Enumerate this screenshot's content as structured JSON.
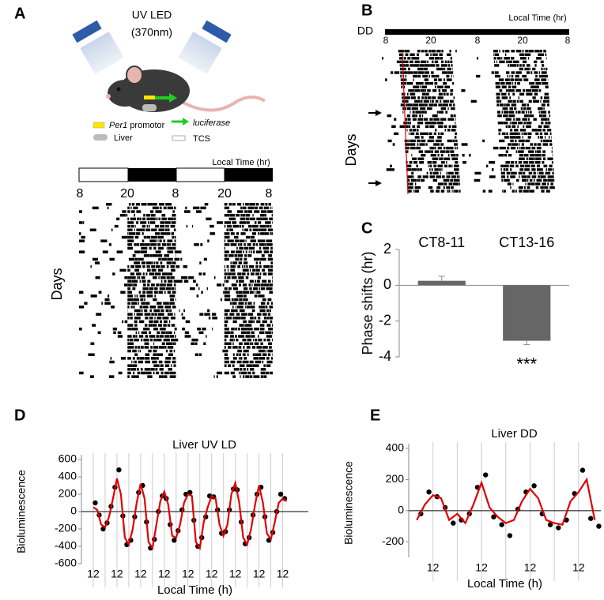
{
  "panel_labels": [
    "A",
    "B",
    "C",
    "D",
    "E"
  ],
  "panel_a": {
    "led_label": "UV LED",
    "wavelength": "(370nm)",
    "per1": "Per1",
    "promotor": "promotor",
    "luciferase": "luciferase",
    "liver": "Liver",
    "tcs": "TCS",
    "actogram": {
      "axis_title": "Local Time (hr)",
      "hour_labels": [
        "8",
        "20",
        "8",
        "20",
        "8"
      ],
      "y_label": "Days"
    }
  },
  "panel_b": {
    "condition": "DD",
    "actogram": {
      "axis_title": "Local Time (hr)",
      "hour_labels": [
        "8",
        "20",
        "8",
        "20",
        "8"
      ],
      "y_label": "Days"
    }
  },
  "chart_data": [
    {
      "type": "bar",
      "categories": [
        "CT8-11",
        "CT13-16"
      ],
      "values": [
        0.25,
        -3.1
      ],
      "errors": [
        0.25,
        0.22
      ],
      "color": "#666666",
      "ylabel": "Phase shifts (hr)",
      "ylim": [
        -4,
        2
      ],
      "yticks": [
        -4,
        -2,
        0,
        2
      ],
      "annotation": "***"
    },
    {
      "type": "scatter",
      "title": "Liver UV LD",
      "xlabel": "Local Time (h)",
      "ylabel": "Bioluminescence",
      "xlim": [
        0,
        230
      ],
      "xticks": [
        {
          "value": 12,
          "label": "12"
        },
        {
          "value": 36,
          "label": "12"
        },
        {
          "value": 60,
          "label": "12"
        },
        {
          "value": 84,
          "label": "12"
        },
        {
          "value": 108,
          "label": "12"
        },
        {
          "value": 132,
          "label": "12"
        },
        {
          "value": 156,
          "label": "12"
        },
        {
          "value": 180,
          "label": "12"
        },
        {
          "value": 204,
          "label": "12"
        }
      ],
      "ylim": [
        -600,
        600
      ],
      "yticks": [
        -600,
        -400,
        -200,
        0,
        200,
        400,
        600
      ],
      "series": [
        {
          "style": "points",
          "color": "#000000",
          "x": [
            14,
            18,
            22,
            26,
            30,
            34,
            38,
            42,
            46,
            50,
            54,
            58,
            62,
            66,
            70,
            74,
            78,
            82,
            86,
            90,
            94,
            98,
            102,
            106,
            110,
            114,
            118,
            122,
            126,
            130,
            134,
            138,
            142,
            146,
            150,
            154,
            158,
            162,
            166,
            170,
            174,
            178,
            182,
            186,
            190,
            194,
            198,
            202,
            206
          ],
          "values": [
            100,
            -40,
            -200,
            -130,
            60,
            280,
            480,
            -50,
            -380,
            -330,
            -60,
            220,
            300,
            -120,
            -420,
            -320,
            0,
            180,
            150,
            -150,
            -330,
            -220,
            20,
            200,
            220,
            -100,
            -400,
            -300,
            -60,
            180,
            170,
            20,
            -250,
            -230,
            20,
            260,
            250,
            -120,
            -370,
            -300,
            -40,
            200,
            280,
            -60,
            -330,
            -240,
            0,
            200,
            150
          ]
        },
        {
          "style": "line",
          "color": "#e00000",
          "x": [
            12,
            16,
            20,
            24,
            28,
            32,
            36,
            40,
            44,
            48,
            52,
            56,
            60,
            64,
            68,
            72,
            76,
            80,
            84,
            88,
            92,
            96,
            100,
            104,
            108,
            112,
            116,
            120,
            124,
            128,
            132,
            136,
            140,
            144,
            148,
            152,
            156,
            160,
            164,
            168,
            172,
            176,
            180,
            184,
            188,
            192,
            196,
            200,
            204,
            208
          ],
          "values": [
            50,
            20,
            -150,
            -180,
            -60,
            150,
            380,
            200,
            -300,
            -380,
            -200,
            100,
            320,
            150,
            -350,
            -420,
            -150,
            120,
            230,
            80,
            -280,
            -300,
            -150,
            100,
            200,
            180,
            -350,
            -420,
            -120,
            50,
            180,
            150,
            -150,
            -280,
            -150,
            200,
            330,
            100,
            -300,
            -380,
            -200,
            80,
            300,
            100,
            -250,
            -320,
            -120,
            100,
            150,
            120
          ]
        }
      ]
    },
    {
      "type": "scatter",
      "title": "Liver DD",
      "xlabel": "Local Time (h)",
      "ylabel": "Bioluminescence",
      "xlim": [
        0,
        95
      ],
      "xticks": [
        {
          "value": 12,
          "label": "12"
        },
        {
          "value": 36,
          "label": "12"
        },
        {
          "value": 60,
          "label": "12"
        },
        {
          "value": 84,
          "label": "12"
        }
      ],
      "ylim": [
        -300,
        400
      ],
      "yticks": [
        -200,
        0,
        200,
        400
      ],
      "series": [
        {
          "style": "points",
          "color": "#000000",
          "x": [
            6,
            10,
            14,
            18,
            22,
            26,
            30,
            34,
            38,
            42,
            46,
            50,
            54,
            58,
            62,
            66,
            70,
            74,
            78,
            82,
            86,
            90,
            94
          ],
          "values": [
            -20,
            120,
            90,
            20,
            -80,
            -60,
            -20,
            150,
            230,
            -40,
            -90,
            -160,
            10,
            120,
            160,
            -20,
            -90,
            -110,
            -60,
            110,
            260,
            -50,
            -100
          ]
        },
        {
          "style": "line",
          "color": "#e00000",
          "x": [
            4,
            8,
            12,
            16,
            20,
            24,
            28,
            32,
            36,
            40,
            44,
            48,
            52,
            56,
            60,
            64,
            68,
            72,
            76,
            80,
            84,
            88,
            92
          ],
          "values": [
            -60,
            40,
            100,
            80,
            -60,
            -20,
            -80,
            40,
            180,
            20,
            -40,
            -80,
            -60,
            60,
            140,
            80,
            -60,
            -80,
            -90,
            60,
            120,
            200,
            -60
          ]
        }
      ]
    }
  ]
}
